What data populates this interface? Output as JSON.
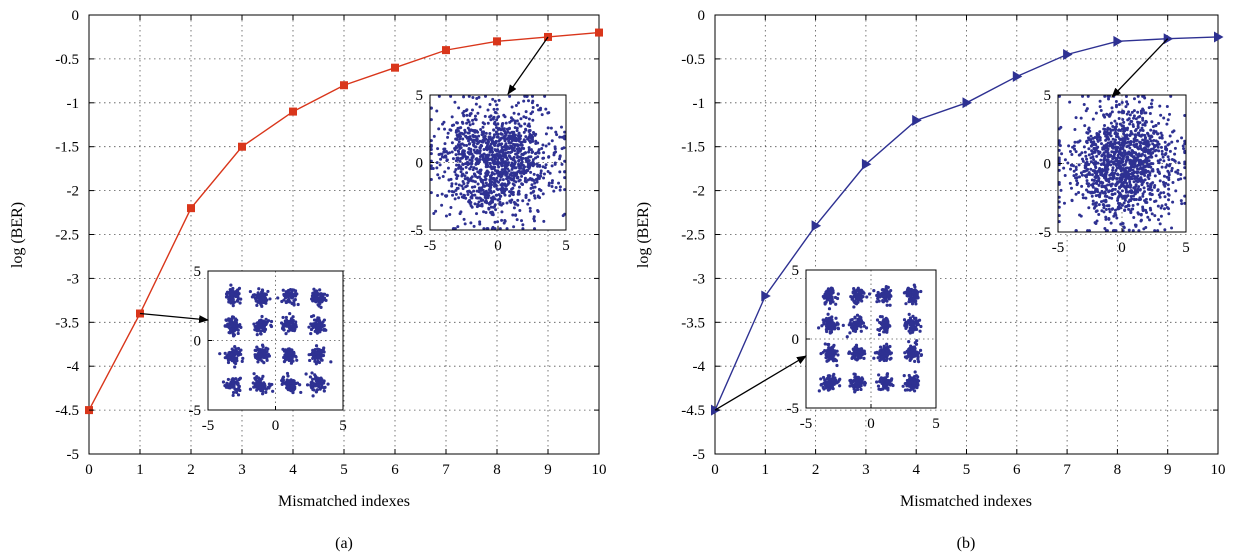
{
  "chart_data": [
    {
      "type": "line",
      "caption": "(a)",
      "xlabel": "Mismatched indexes",
      "ylabel": "log (BER)",
      "xlim": [
        0,
        10
      ],
      "ylim": [
        -5,
        0
      ],
      "xticks": [
        "0",
        "1",
        "2",
        "3",
        "4",
        "5",
        "6",
        "7",
        "8",
        "9",
        "10"
      ],
      "yticks": [
        "0",
        "-0.5",
        "-1",
        "-1.5",
        "-2",
        "-2.5",
        "-3",
        "-3.5",
        "-4",
        "-4.5",
        "-5"
      ],
      "grid": true,
      "marker": "square",
      "color": "#d9361b",
      "x": [
        0,
        1,
        2,
        3,
        4,
        5,
        6,
        7,
        8,
        9,
        10
      ],
      "y": [
        -4.5,
        -3.4,
        -2.2,
        -1.5,
        -1.1,
        -0.8,
        -0.6,
        -0.4,
        -0.3,
        -0.25,
        -0.2
      ],
      "insets": [
        {
          "type": "scatter",
          "kind": "16-point constellation (clustered)",
          "xlim": [
            -5,
            5
          ],
          "ylim": [
            -5,
            5
          ],
          "xticks": [
            "-5",
            "0",
            "5"
          ],
          "yticks": [
            "5",
            "0",
            "-5"
          ],
          "points_color": "#2e3192",
          "arrow_from": [
            1,
            -3.4
          ]
        },
        {
          "type": "scatter",
          "kind": "scattered noise cloud",
          "xlim": [
            -5,
            5
          ],
          "ylim": [
            -5,
            5
          ],
          "xticks": [
            "-5",
            "0",
            "5"
          ],
          "yticks": [
            "5",
            "0",
            "-5"
          ],
          "points_color": "#2e3192",
          "arrow_from": [
            9,
            -0.25
          ]
        }
      ]
    },
    {
      "type": "line",
      "caption": "(b)",
      "xlabel": "Mismatched indexes",
      "ylabel": "log (BER)",
      "xlim": [
        0,
        10
      ],
      "ylim": [
        -5,
        0
      ],
      "xticks": [
        "0",
        "1",
        "2",
        "3",
        "4",
        "5",
        "6",
        "7",
        "8",
        "9",
        "10"
      ],
      "yticks": [
        "0",
        "-0.5",
        "-1",
        "-1.5",
        "-2",
        "-2.5",
        "-3",
        "-3.5",
        "-4",
        "-4.5",
        "-5"
      ],
      "grid": true,
      "marker": "triangle-right",
      "color": "#2e3192",
      "x": [
        0,
        1,
        2,
        3,
        4,
        5,
        6,
        7,
        8,
        9,
        10
      ],
      "y": [
        -4.5,
        -3.2,
        -2.4,
        -1.7,
        -1.2,
        -1.0,
        -0.7,
        -0.45,
        -0.3,
        -0.27,
        -0.25
      ],
      "insets": [
        {
          "type": "scatter",
          "kind": "16-point constellation (clustered)",
          "xlim": [
            -5,
            5
          ],
          "ylim": [
            -5,
            5
          ],
          "xticks": [
            "-5",
            "0",
            "5"
          ],
          "yticks": [
            "5",
            "0",
            "-5"
          ],
          "points_color": "#2e3192",
          "arrow_from": [
            0,
            -4.5
          ]
        },
        {
          "type": "scatter",
          "kind": "scattered noise cloud",
          "xlim": [
            -5,
            5
          ],
          "ylim": [
            -5,
            5
          ],
          "xticks": [
            "-5",
            "0",
            "5"
          ],
          "yticks": [
            "5",
            "0",
            "-5"
          ],
          "points_color": "#2e3192",
          "arrow_from": [
            9,
            -0.27
          ]
        }
      ]
    }
  ]
}
